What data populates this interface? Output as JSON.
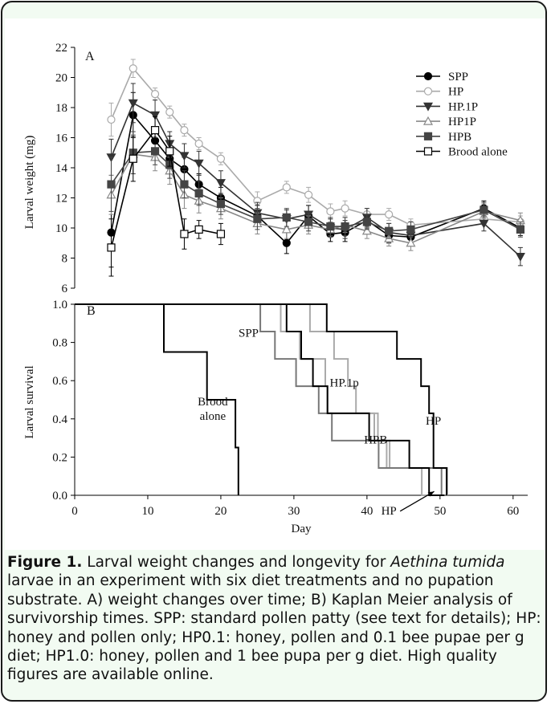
{
  "chart_data": [
    {
      "type": "line",
      "panel_label": "A",
      "xlabel": "",
      "ylabel": "Larval weight (mg)",
      "ylim": [
        6,
        22
      ],
      "y_ticks": [
        "6",
        "8",
        "10",
        "12",
        "14",
        "16",
        "18",
        "20",
        "22"
      ],
      "legend_position": "top-right",
      "series": [
        {
          "name": "SPP",
          "marker": "circle-filled",
          "color": "#000000",
          "x": [
            5,
            8,
            11,
            13,
            15,
            17,
            20,
            25,
            29,
            32,
            35,
            37,
            40,
            43,
            46,
            56,
            61
          ],
          "y": [
            9.7,
            17.5,
            15.8,
            14.6,
            13.9,
            12.9,
            12.0,
            10.8,
            9.0,
            10.8,
            9.6,
            9.7,
            10.5,
            9.5,
            9.4,
            11.3,
            10.0
          ],
          "err": [
            2.3,
            1.5,
            0.7,
            0.7,
            0.8,
            0.7,
            0.7,
            0.7,
            0.7,
            0.7,
            0.5,
            0.6,
            0.5,
            0.5,
            0.5,
            0.5,
            0.5
          ]
        },
        {
          "name": "HP",
          "marker": "circle-open",
          "color": "#aaaaaa",
          "x": [
            5,
            8,
            11,
            13,
            15,
            17,
            20,
            25,
            29,
            32,
            35,
            37,
            40,
            43,
            46,
            56,
            61
          ],
          "y": [
            17.2,
            20.6,
            18.9,
            17.7,
            16.5,
            15.6,
            14.6,
            11.8,
            12.7,
            12.2,
            11.1,
            11.3,
            10.9,
            10.9,
            10.2,
            10.6,
            10.4
          ],
          "err": [
            1.1,
            0.6,
            0.4,
            0.4,
            0.4,
            0.4,
            0.4,
            0.6,
            0.4,
            0.5,
            0.5,
            0.5,
            0.4,
            0.4,
            0.4,
            0.4,
            0.4
          ]
        },
        {
          "name": "HP.1P",
          "marker": "triangle-down-filled",
          "color": "#333333",
          "x": [
            5,
            8,
            11,
            13,
            15,
            17,
            20,
            25,
            29,
            32,
            35,
            37,
            40,
            43,
            46,
            56,
            61
          ],
          "y": [
            14.7,
            18.3,
            17.5,
            15.6,
            14.8,
            14.3,
            13.0,
            11.0,
            10.6,
            10.9,
            10.0,
            9.9,
            10.7,
            9.7,
            9.5,
            10.3,
            8.1
          ],
          "err": [
            1.2,
            1.3,
            1.0,
            0.8,
            0.8,
            0.8,
            0.8,
            0.7,
            0.6,
            0.6,
            0.6,
            0.6,
            0.6,
            0.6,
            0.6,
            0.5,
            0.6
          ]
        },
        {
          "name": "HP1P",
          "marker": "triangle-up-open",
          "color": "#888888",
          "x": [
            5,
            8,
            11,
            13,
            15,
            17,
            20,
            25,
            29,
            32,
            35,
            37,
            40,
            43,
            46,
            56,
            61
          ],
          "y": [
            12.2,
            14.9,
            14.7,
            13.8,
            12.2,
            11.8,
            11.3,
            10.3,
            9.9,
            10.2,
            9.9,
            10.2,
            9.8,
            9.3,
            9.0,
            11.1,
            10.5
          ],
          "err": [
            1.3,
            1.3,
            0.9,
            0.9,
            0.9,
            0.8,
            0.7,
            0.7,
            0.6,
            0.6,
            0.5,
            0.5,
            0.5,
            0.5,
            0.5,
            0.5,
            0.5
          ]
        },
        {
          "name": "HPB",
          "marker": "square-filled",
          "color": "#444444",
          "x": [
            5,
            8,
            11,
            13,
            15,
            17,
            20,
            25,
            29,
            32,
            35,
            37,
            40,
            43,
            46,
            56,
            61
          ],
          "y": [
            12.9,
            15.0,
            15.1,
            14.2,
            12.9,
            12.3,
            11.6,
            10.6,
            10.7,
            10.4,
            10.1,
            10.1,
            10.4,
            9.8,
            9.9,
            11.2,
            9.9
          ],
          "err": [
            1.8,
            1.4,
            0.9,
            0.9,
            0.9,
            0.8,
            0.7,
            0.7,
            0.6,
            0.6,
            0.6,
            0.6,
            0.5,
            0.5,
            0.5,
            0.5,
            0.5
          ]
        },
        {
          "name": "Brood alone",
          "marker": "square-open",
          "color": "#000000",
          "x": [
            5,
            8,
            11,
            13,
            15,
            17,
            20
          ],
          "y": [
            8.7,
            14.6,
            16.5,
            15.1,
            9.6,
            9.9,
            9.6
          ],
          "err": [
            1.9,
            1.5,
            0.9,
            1.0,
            1.0,
            0.6,
            0.7
          ]
        }
      ]
    },
    {
      "type": "line",
      "subtype": "kaplan-meier-step",
      "panel_label": "B",
      "xlabel": "Day",
      "ylabel": "Larval survival",
      "xlim": [
        0,
        62
      ],
      "ylim": [
        0,
        1.0
      ],
      "x_ticks": [
        "0",
        "10",
        "20",
        "30",
        "40",
        "50",
        "60"
      ],
      "y_ticks": [
        "0.0",
        "0.2",
        "0.4",
        "0.6",
        "0.8",
        "1.0"
      ],
      "series": [
        {
          "name": "Brood alone",
          "color": "#000000",
          "x": [
            0,
            12.2,
            18.1,
            22.0,
            22.4
          ],
          "y": [
            1.0,
            0.75,
            0.5,
            0.25,
            0.0
          ]
        },
        {
          "name": "SPP",
          "color": "#000000",
          "x": [
            0,
            29.0,
            31.0,
            32.6,
            34.6,
            40.3,
            45.8,
            48.5,
            50.6
          ],
          "y": [
            1.0,
            0.857,
            0.714,
            0.571,
            0.429,
            0.286,
            0.143,
            0.0,
            0.0
          ]
        },
        {
          "name": "HP",
          "color": "#000000",
          "x": [
            0,
            34.5,
            44.1,
            47.4,
            48.5,
            49.1,
            50.9
          ],
          "y": [
            1.0,
            0.857,
            0.714,
            0.571,
            0.429,
            0.143,
            0.0
          ]
        },
        {
          "name": "HP.1p",
          "color": "#aaaaaa",
          "x": [
            0,
            28.2,
            30.8,
            34.3,
            34.6,
            41.5,
            43.1,
            47.5,
            48.3
          ],
          "y": [
            1.0,
            0.857,
            0.714,
            0.571,
            0.429,
            0.286,
            0.143,
            0.0,
            0.0
          ]
        },
        {
          "name": "HPB",
          "color": "#aaaaaa",
          "x": [
            0,
            32.2,
            35.5,
            37.4,
            38.5,
            41.0,
            42.7,
            45.5,
            51.0
          ],
          "y": [
            1.0,
            0.857,
            0.714,
            0.571,
            0.429,
            0.286,
            0.143,
            0.143,
            0.0
          ]
        },
        {
          "name": "HP1P",
          "color": "#777777",
          "x": [
            0,
            25.4,
            27.4,
            30.3,
            33.4,
            35.2,
            40.8,
            41.6,
            50.2
          ],
          "y": [
            1.0,
            0.857,
            0.714,
            0.571,
            0.429,
            0.286,
            0.286,
            0.143,
            0.0
          ]
        }
      ],
      "annotations": [
        {
          "text": "Brood alone",
          "x": 18.9,
          "y": 0.47
        },
        {
          "text": "SPP",
          "x": 23.8,
          "y": 0.83
        },
        {
          "text": "HP.1p",
          "x": 36.9,
          "y": 0.57
        },
        {
          "text": "HPB",
          "x": 41.2,
          "y": 0.27
        },
        {
          "text": "HP",
          "x": 49.1,
          "y": 0.37
        },
        {
          "text": "HP",
          "x": 43.0,
          "y": -0.1
        }
      ]
    }
  ],
  "caption": {
    "figure_label": "Figure 1.",
    "part1": " Larval weight changes and longevity for ",
    "species": "Aethina tumida",
    "part2": " larvae in an experiment with six diet treatments and no pupation substrate. A) weight changes over time; B) Kaplan Meier analysis of survivorship times. SPP: standard pollen patty (see text for details); HP: honey and pollen only; HP0.1: honey, pollen and 0.1 bee pupae per g diet; HP1.0: honey, pollen and 1 bee pupa per g diet. High quality figures are available online."
  }
}
